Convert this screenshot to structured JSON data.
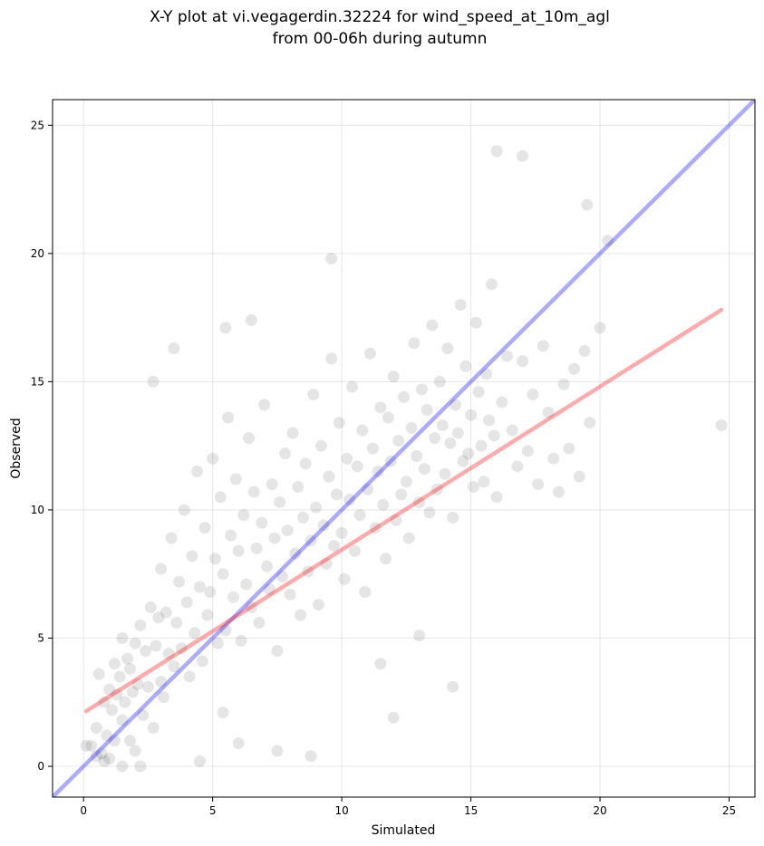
{
  "chart_data": {
    "type": "scatter",
    "title": "X-Y plot at vi.vegagerdin.32224 for wind_speed_at_10m_agl",
    "subtitle": "from 00-06h during autumn",
    "xlabel": "Simulated",
    "ylabel": "Observed",
    "xlim": [
      -1.2,
      26
    ],
    "ylim": [
      -1.2,
      26
    ],
    "xticks": [
      0,
      5,
      10,
      15,
      20,
      25
    ],
    "yticks": [
      0,
      5,
      10,
      15,
      20,
      25
    ],
    "grid": true,
    "colors": {
      "points": "#000000",
      "identity_line": "#0000ff",
      "fit_line": "#ff0000"
    },
    "series": [
      {
        "kind": "points",
        "x": [
          0.3,
          0.5,
          0.6,
          0.7,
          0.8,
          0.9,
          1.0,
          1.0,
          1.1,
          1.2,
          1.2,
          1.3,
          1.4,
          1.5,
          1.5,
          1.6,
          1.7,
          1.8,
          1.8,
          1.9,
          2.0,
          2.0,
          2.1,
          2.2,
          2.3,
          2.4,
          2.5,
          2.6,
          2.7,
          2.8,
          2.9,
          3.0,
          3.0,
          3.1,
          3.2,
          3.3,
          3.4,
          3.5,
          3.6,
          3.7,
          3.8,
          3.9,
          4.0,
          4.1,
          4.2,
          4.3,
          4.4,
          4.5,
          4.6,
          4.7,
          4.8,
          4.9,
          5.0,
          5.1,
          5.2,
          5.3,
          5.4,
          5.5,
          5.6,
          5.7,
          5.8,
          5.9,
          6.0,
          6.1,
          6.2,
          6.3,
          6.4,
          6.5,
          6.6,
          6.7,
          6.8,
          6.9,
          7.0,
          7.1,
          7.2,
          7.3,
          7.4,
          7.5,
          7.6,
          7.7,
          7.8,
          7.9,
          8.0,
          8.1,
          8.2,
          8.3,
          8.4,
          8.5,
          8.6,
          8.7,
          8.8,
          8.9,
          9.0,
          9.1,
          9.2,
          9.3,
          9.4,
          9.5,
          9.6,
          9.7,
          9.8,
          9.9,
          10.0,
          10.1,
          10.2,
          10.3,
          10.4,
          10.5,
          10.6,
          10.7,
          10.8,
          10.9,
          11.0,
          11.1,
          11.2,
          11.3,
          11.4,
          11.5,
          11.6,
          11.7,
          11.8,
          11.9,
          12.0,
          12.1,
          12.2,
          12.3,
          12.4,
          12.5,
          12.6,
          12.7,
          12.8,
          12.9,
          13.0,
          13.1,
          13.2,
          13.3,
          13.4,
          13.5,
          13.6,
          13.7,
          13.8,
          13.9,
          14.0,
          14.1,
          14.2,
          14.3,
          14.4,
          14.5,
          14.6,
          14.7,
          14.8,
          14.9,
          15.0,
          15.1,
          15.2,
          15.3,
          15.4,
          15.5,
          15.6,
          15.7,
          15.8,
          15.9,
          16.0,
          16.2,
          16.4,
          16.6,
          16.8,
          17.0,
          17.2,
          17.4,
          17.6,
          17.8,
          18.0,
          18.2,
          18.4,
          18.6,
          18.8,
          19.0,
          19.2,
          19.4,
          19.6,
          20.0,
          20.3,
          24.7,
          17.0,
          19.5,
          16.0,
          9.6,
          2.7,
          3.5,
          6.5,
          5.5,
          5.4,
          12.0,
          14.3,
          13.0,
          11.5,
          8.8,
          7.5,
          6.0,
          4.5,
          2.2,
          1.5,
          0.8,
          0.5,
          0.1
        ],
        "y": [
          0.8,
          1.5,
          3.6,
          0.5,
          2.5,
          1.2,
          3.0,
          0.3,
          2.2,
          4.0,
          1.0,
          2.8,
          3.5,
          1.8,
          5.0,
          2.5,
          4.2,
          1.0,
          3.8,
          2.9,
          4.8,
          0.6,
          3.2,
          5.5,
          2.0,
          4.5,
          3.1,
          6.2,
          1.5,
          4.7,
          5.8,
          3.3,
          7.7,
          2.7,
          6.0,
          4.4,
          8.9,
          3.9,
          5.6,
          7.2,
          4.6,
          10.0,
          6.4,
          3.5,
          8.2,
          5.2,
          11.5,
          7.0,
          4.1,
          9.3,
          5.9,
          6.8,
          12.0,
          8.1,
          4.8,
          10.5,
          7.5,
          5.3,
          13.6,
          9.0,
          6.6,
          11.2,
          8.4,
          4.9,
          9.8,
          7.1,
          12.8,
          6.2,
          10.7,
          8.5,
          5.6,
          9.5,
          14.1,
          7.8,
          6.9,
          11.0,
          8.9,
          4.5,
          10.3,
          7.4,
          12.2,
          9.2,
          6.7,
          13.0,
          8.3,
          10.9,
          5.9,
          9.7,
          11.8,
          7.6,
          8.8,
          14.5,
          10.1,
          6.3,
          12.5,
          9.4,
          7.9,
          11.3,
          15.9,
          8.6,
          10.6,
          13.4,
          9.1,
          7.3,
          12.0,
          10.4,
          14.8,
          8.4,
          11.7,
          9.8,
          13.1,
          6.8,
          10.8,
          16.1,
          12.4,
          9.3,
          11.5,
          14.0,
          10.2,
          8.1,
          13.6,
          11.9,
          15.2,
          9.6,
          12.7,
          10.6,
          14.4,
          11.1,
          8.9,
          13.2,
          16.5,
          12.1,
          10.3,
          14.7,
          11.6,
          13.9,
          9.9,
          17.2,
          12.8,
          10.8,
          15.0,
          13.3,
          11.4,
          16.3,
          12.6,
          9.7,
          14.1,
          13.0,
          18.0,
          11.9,
          15.6,
          12.2,
          13.7,
          10.9,
          17.3,
          14.6,
          12.5,
          11.1,
          15.3,
          13.5,
          18.8,
          12.9,
          10.5,
          14.2,
          16.0,
          13.1,
          11.7,
          15.8,
          12.3,
          14.5,
          11.0,
          16.4,
          13.8,
          12.0,
          10.7,
          14.9,
          12.4,
          15.5,
          11.3,
          16.2,
          13.4,
          17.1,
          20.5,
          13.3,
          23.8,
          21.9,
          24.0,
          19.8,
          15.0,
          16.3,
          17.4,
          17.1,
          2.1,
          1.9,
          3.1,
          5.1,
          4.0,
          0.4,
          0.6,
          0.9,
          0.2,
          0.0,
          0.0,
          0.2,
          0.4,
          0.8
        ]
      },
      {
        "kind": "line",
        "name": "",
        "role": "identity",
        "x": [
          -1.2,
          26
        ],
        "y": [
          -1.2,
          26
        ]
      },
      {
        "kind": "line",
        "name": "",
        "role": "fit",
        "x": [
          0.1,
          24.7
        ],
        "y": [
          2.15,
          17.8
        ]
      }
    ]
  }
}
